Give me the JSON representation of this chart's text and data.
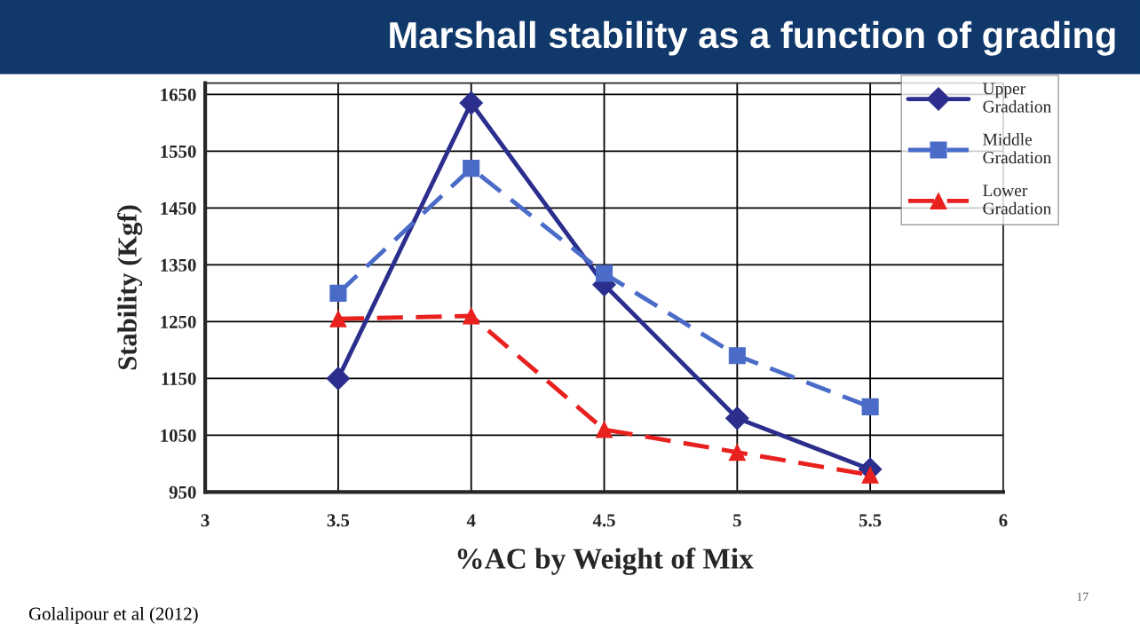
{
  "chart_data": {
    "type": "line",
    "title": "Marshall stability as a function of grading",
    "xlabel": "%AC by Weight of Mix",
    "ylabel": "Stability (Kgf)",
    "x": [
      3.5,
      4,
      4.5,
      5,
      5.5
    ],
    "series": [
      {
        "name": "Upper Gradation",
        "color": "#2b2e8c",
        "values": [
          1150,
          1635,
          1315,
          1080,
          990
        ],
        "marker": "diamond",
        "line_style": "solid"
      },
      {
        "name": "Middle Gradation",
        "color": "#4a6cc8",
        "values": [
          1300,
          1520,
          1335,
          1190,
          1100
        ],
        "marker": "square",
        "line_style": "dashed"
      },
      {
        "name": "Lower Gradation",
        "color": "#e8201e",
        "values": [
          1255,
          1260,
          1060,
          1020,
          980
        ],
        "marker": "triangle",
        "line_style": "dashed"
      }
    ],
    "xlim": [
      3,
      6
    ],
    "xticks": [
      3,
      3.5,
      4,
      4.5,
      5,
      5.5,
      6
    ],
    "ylim": [
      950,
      1670
    ],
    "yticks": [
      950,
      1050,
      1150,
      1250,
      1350,
      1450,
      1550,
      1650
    ],
    "grid": true,
    "legend": "top right",
    "annotations": [
      "Golalipour et al (2012)",
      "17"
    ]
  }
}
